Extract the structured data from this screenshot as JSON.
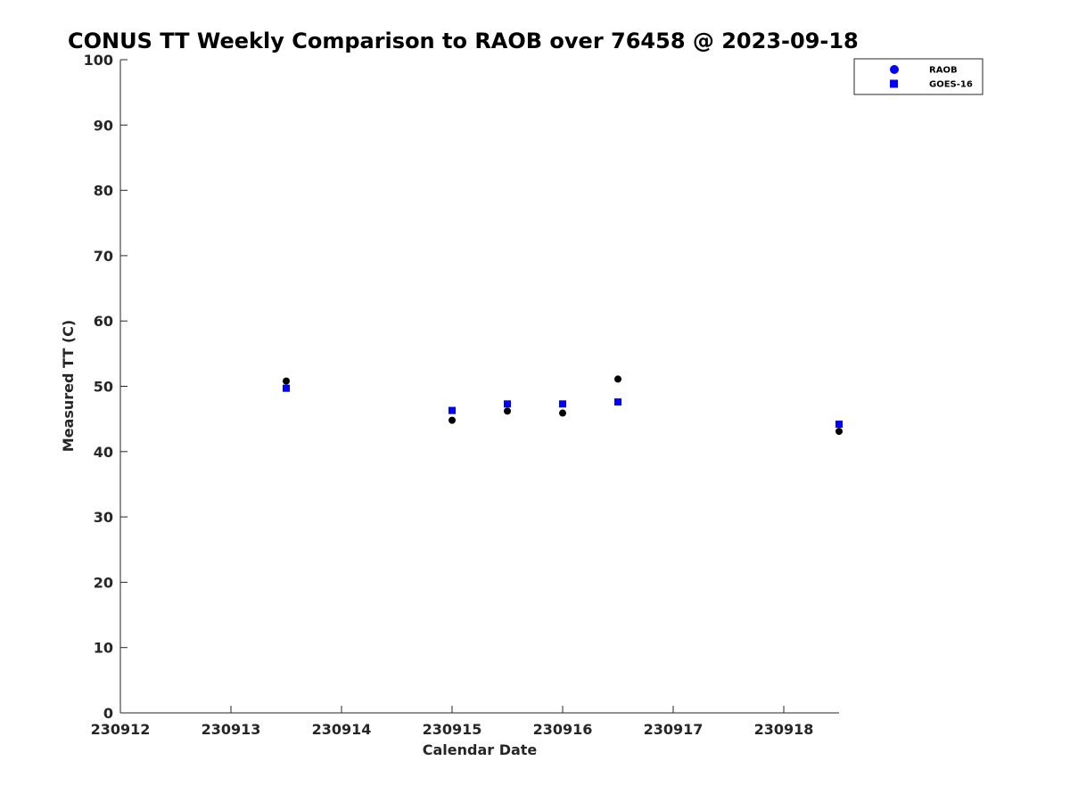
{
  "chart_data": {
    "type": "scatter",
    "title": "CONUS TT Weekly Comparison to RAOB over 76458 @ 2023-09-18",
    "xlabel": "Calendar Date",
    "ylabel": "Measured TT (C)",
    "xlim": [
      "230912",
      "230918.5"
    ],
    "ylim": [
      0,
      100
    ],
    "x_ticks": [
      "230912",
      "230913",
      "230914",
      "230915",
      "230916",
      "230917",
      "230918"
    ],
    "y_ticks": [
      0,
      10,
      20,
      30,
      40,
      50,
      60,
      70,
      80,
      90,
      100
    ],
    "grid": false,
    "legend_position": "top-right",
    "series": [
      {
        "name": "RAOB",
        "marker": "circle",
        "legend_color": "#0000ff",
        "point_color": "#000000",
        "points": [
          {
            "x": "230913.5",
            "y": 50.8
          },
          {
            "x": "230915",
            "y": 44.8
          },
          {
            "x": "230915.5",
            "y": 46.2
          },
          {
            "x": "230916",
            "y": 45.9
          },
          {
            "x": "230916.5",
            "y": 51.1
          },
          {
            "x": "230918.5",
            "y": 43.1
          }
        ]
      },
      {
        "name": "GOES-16",
        "marker": "square",
        "legend_color": "#0000ff",
        "point_color": "#0000ff",
        "points": [
          {
            "x": "230913.5",
            "y": 49.7
          },
          {
            "x": "230915",
            "y": 46.3
          },
          {
            "x": "230915.5",
            "y": 47.3
          },
          {
            "x": "230916",
            "y": 47.3
          },
          {
            "x": "230916.5",
            "y": 47.6
          },
          {
            "x": "230918.5",
            "y": 44.2
          }
        ]
      }
    ]
  }
}
